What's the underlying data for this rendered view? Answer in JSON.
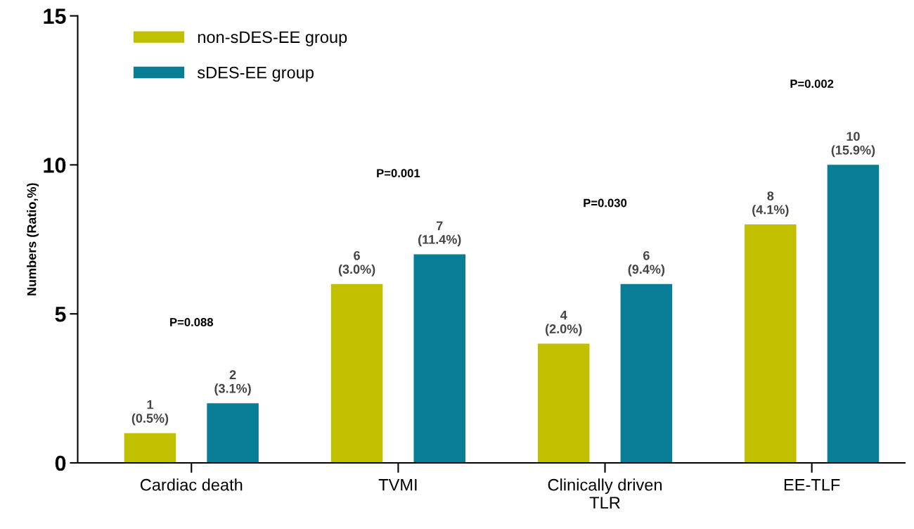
{
  "chart_data": {
    "type": "bar",
    "ylabel": "Numbers (Ratio,%)",
    "categories": [
      "Cardiac death",
      "TVMI",
      "Clinically driven\nTLR",
      "EE-TLF"
    ],
    "series": [
      {
        "name": "non-sDES-EE group",
        "color": "#c0c000",
        "values": [
          1,
          6,
          4,
          8
        ],
        "value_labels": [
          "1\n(0.5%)",
          "6\n(3.0%)",
          "4\n(2.0%)",
          "8\n(4.1%)"
        ]
      },
      {
        "name": "sDES-EE group",
        "color": "#077d96",
        "values": [
          2,
          7,
          6,
          10
        ],
        "value_labels": [
          "2\n(3.1%)",
          "7\n(11.4%)",
          "6\n(9.4%)",
          "10\n(15.9%)"
        ]
      }
    ],
    "ylim": [
      0,
      15
    ],
    "yticks": [
      0,
      5,
      10,
      15
    ],
    "grid": false,
    "legend": "top left",
    "annotations": [
      "P=0.088",
      "P=0.001",
      "P=0.030",
      "P=0.002"
    ]
  }
}
